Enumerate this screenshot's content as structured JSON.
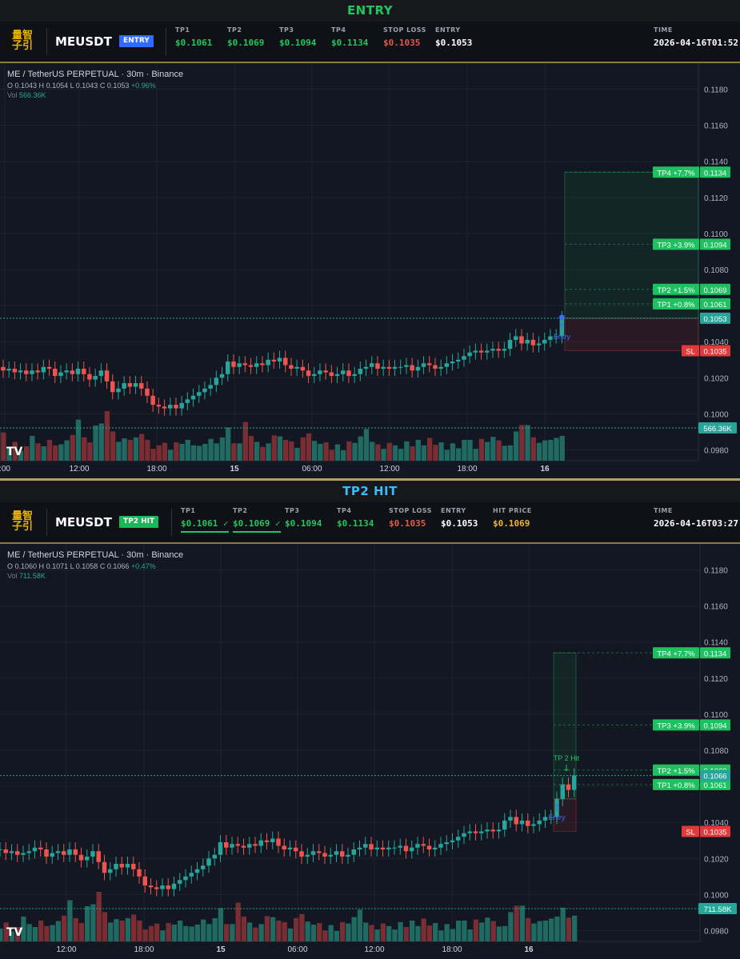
{
  "colors": {
    "up": "#26a69a",
    "down": "#ef5350",
    "tp": "#1ec15f",
    "sl": "#e03a3a",
    "entry_badge": "#2f6bff",
    "tp2_badge": "#16b85a",
    "tp2_banner": "#38bdf8",
    "entry_banner": "#22c55e",
    "hit": "#f0b429"
  },
  "logo_text_1": "量智",
  "logo_text_2": "子引",
  "panels": [
    {
      "banner": "ENTRY",
      "symbol": "MEUSDT",
      "status": "ENTRY",
      "fields": [
        {
          "label": "TP1",
          "value": "$0.1061"
        },
        {
          "label": "TP2",
          "value": "$0.1069"
        },
        {
          "label": "TP3",
          "value": "$0.1094"
        },
        {
          "label": "TP4",
          "value": "$0.1134"
        },
        {
          "label": "STOP LOSS",
          "value": "$0.1035"
        },
        {
          "label": "ENTRY",
          "value": "$0.1053"
        }
      ],
      "time_label": "TIME",
      "time_value": "2026-04-16T01:52",
      "overlay": {
        "title": "ME / TetherUS PERPETUAL · 30m · Binance",
        "O": "0.1043",
        "H": "0.1054",
        "L": "0.1043",
        "C": "0.1053",
        "chg": "+0.96%",
        "vol": "566.36K"
      }
    },
    {
      "banner": "TP2 HIT",
      "symbol": "MEUSDT",
      "status": "TP2 HIT",
      "fields": [
        {
          "label": "TP1",
          "value": "$0.1061 ✓"
        },
        {
          "label": "TP2",
          "value": "$0.1069 ✓"
        },
        {
          "label": "TP3",
          "value": "$0.1094"
        },
        {
          "label": "TP4",
          "value": "$0.1134"
        },
        {
          "label": "STOP LOSS",
          "value": "$0.1035"
        },
        {
          "label": "ENTRY",
          "value": "$0.1053"
        },
        {
          "label": "HIT PRICE",
          "value": "$0.1069"
        }
      ],
      "time_label": "TIME",
      "time_value": "2026-04-16T03:27",
      "overlay": {
        "title": "ME / TetherUS PERPETUAL · 30m · Binance",
        "O": "0.1060",
        "H": "0.1071",
        "L": "0.1058",
        "C": "0.1066",
        "chg": "+0.47%",
        "vol": "711.58K"
      }
    }
  ],
  "chart_data": [
    {
      "type": "candlestick",
      "ylim": [
        0.097,
        0.119
      ],
      "y_ticks": [
        "0.1180",
        "0.1160",
        "0.1140",
        "0.1120",
        "0.1100",
        "0.1080",
        "0.1060",
        "0.1040",
        "0.1020",
        "0.1000",
        "0.0980"
      ],
      "x_ticks": [
        ":00",
        "12:00",
        "18:00",
        "15",
        "06:00",
        "12:00",
        "18:00",
        "16"
      ],
      "levels": [
        {
          "label": "TP4 +7.7%",
          "price": "0.1134"
        },
        {
          "label": "TP3 +3.9%",
          "price": "0.1094"
        },
        {
          "label": "TP2 +1.5%",
          "price": "0.1069"
        },
        {
          "label": "TP1 +0.8%",
          "price": "0.1061"
        },
        {
          "label": "SL",
          "price": "0.1035"
        }
      ],
      "last_price": "0.1053",
      "volume_label": "566.36K",
      "marker": "Entry",
      "closes": [
        0.1026,
        0.1024,
        0.1025,
        0.1023,
        0.1024,
        0.1022,
        0.1024,
        0.1023,
        0.1026,
        0.1025,
        0.1021,
        0.1023,
        0.1024,
        0.1022,
        0.1025,
        0.1022,
        0.1019,
        0.1021,
        0.1024,
        0.1018,
        0.1012,
        0.1014,
        0.1017,
        0.1015,
        0.1017,
        0.1014,
        0.101,
        0.1005,
        0.1004,
        0.1003,
        0.1005,
        0.1003,
        0.1006,
        0.1008,
        0.101,
        0.1012,
        0.1014,
        0.1016,
        0.102,
        0.1022,
        0.1029,
        0.1026,
        0.1028,
        0.1027,
        0.1026,
        0.1028,
        0.1027,
        0.103,
        0.1029,
        0.1031,
        0.1027,
        0.1025,
        0.1026,
        0.1024,
        0.1021,
        0.1022,
        0.1024,
        0.1023,
        0.1021,
        0.1022,
        0.1024,
        0.1021,
        0.1022,
        0.1025,
        0.1026,
        0.1028,
        0.1025,
        0.1026,
        0.1025,
        0.1026,
        0.1026,
        0.1027,
        0.1024,
        0.1026,
        0.1028,
        0.1027,
        0.1025,
        0.1026,
        0.1028,
        0.1029,
        0.103,
        0.1032,
        0.1034,
        0.1035,
        0.1034,
        0.1035,
        0.1036,
        0.1035,
        0.1036,
        0.1041,
        0.1043,
        0.1039,
        0.1041,
        0.1038,
        0.1039,
        0.1041,
        0.1043,
        0.1043,
        0.1053
      ],
      "volumes": [
        62,
        57,
        26,
        38,
        20,
        29,
        50,
        35,
        29,
        42,
        31,
        33,
        41,
        52,
        83,
        47,
        37,
        71,
        75,
        100,
        59,
        38,
        45,
        42,
        47,
        54,
        42,
        24,
        31,
        36,
        22,
        37,
        34,
        42,
        31,
        30,
        34,
        44,
        35,
        47,
        67,
        35,
        35,
        78,
        50,
        38,
        28,
        35,
        51,
        49,
        42,
        39,
        26,
        47,
        55,
        40,
        34,
        37,
        22,
        33,
        21,
        39,
        36,
        49,
        64,
        38,
        33,
        24,
        36,
        31,
        24,
        39,
        29,
        42,
        31,
        46,
        32,
        37,
        22,
        35,
        25,
        42,
        42,
        24,
        44,
        38,
        48,
        41,
        30,
        31,
        59,
        72,
        72,
        47,
        36,
        41,
        42,
        46,
        50
      ]
    },
    {
      "type": "candlestick",
      "ylim": [
        0.097,
        0.119
      ],
      "y_ticks": [
        "0.1180",
        "0.1160",
        "0.1140",
        "0.1120",
        "0.1100",
        "0.1080",
        "0.1060",
        "0.1040",
        "0.1020",
        "0.1000",
        "0.0980"
      ],
      "x_ticks": [
        "12:00",
        "18:00",
        "15",
        "06:00",
        "12:00",
        "18:00",
        "16"
      ],
      "levels": [
        {
          "label": "TP4 +7.7%",
          "price": "0.1134"
        },
        {
          "label": "TP3 +3.9%",
          "price": "0.1094"
        },
        {
          "label": "TP2 +1.5%",
          "price": "0.1069"
        },
        {
          "label": "TP1 +0.8%",
          "price": "0.1061"
        },
        {
          "label": "SL",
          "price": "0.1035"
        }
      ],
      "last_price": "0.1066",
      "volume_label": "711.58K",
      "marker": "Entry",
      "hit_marker": "TP 2 Hit",
      "closes": [
        0.1025,
        0.1025,
        0.1023,
        0.1024,
        0.1022,
        0.1023,
        0.1024,
        0.1026,
        0.1025,
        0.1021,
        0.1023,
        0.1024,
        0.1022,
        0.1025,
        0.1022,
        0.1019,
        0.1021,
        0.1024,
        0.1018,
        0.1012,
        0.1014,
        0.1017,
        0.1015,
        0.1017,
        0.1014,
        0.101,
        0.1005,
        0.1004,
        0.1003,
        0.1005,
        0.1003,
        0.1006,
        0.1008,
        0.101,
        0.1012,
        0.1014,
        0.1016,
        0.102,
        0.1022,
        0.1029,
        0.1026,
        0.1028,
        0.1027,
        0.1026,
        0.1028,
        0.1027,
        0.103,
        0.1029,
        0.1031,
        0.1027,
        0.1025,
        0.1026,
        0.1024,
        0.1021,
        0.1022,
        0.1024,
        0.1023,
        0.1021,
        0.1022,
        0.1024,
        0.1021,
        0.1022,
        0.1025,
        0.1026,
        0.1028,
        0.1025,
        0.1026,
        0.1025,
        0.1026,
        0.1026,
        0.1027,
        0.1024,
        0.1026,
        0.1028,
        0.1027,
        0.1025,
        0.1026,
        0.1028,
        0.1029,
        0.103,
        0.1032,
        0.1034,
        0.1035,
        0.1034,
        0.1035,
        0.1036,
        0.1035,
        0.1036,
        0.1041,
        0.1043,
        0.1039,
        0.1041,
        0.1038,
        0.1039,
        0.1041,
        0.1043,
        0.1043,
        0.1053,
        0.1061,
        0.1058,
        0.1066
      ],
      "volumes": [
        62,
        26,
        38,
        20,
        29,
        50,
        35,
        29,
        42,
        31,
        33,
        41,
        52,
        83,
        47,
        37,
        71,
        75,
        100,
        59,
        38,
        45,
        42,
        47,
        54,
        42,
        24,
        31,
        36,
        22,
        37,
        34,
        42,
        31,
        30,
        34,
        44,
        35,
        47,
        67,
        35,
        35,
        78,
        50,
        38,
        28,
        35,
        51,
        49,
        42,
        39,
        26,
        47,
        55,
        40,
        34,
        37,
        22,
        33,
        21,
        39,
        36,
        49,
        64,
        38,
        33,
        24,
        36,
        31,
        24,
        39,
        29,
        42,
        31,
        46,
        32,
        37,
        22,
        35,
        25,
        42,
        42,
        24,
        44,
        38,
        48,
        41,
        30,
        31,
        59,
        72,
        72,
        47,
        36,
        41,
        42,
        46,
        50,
        68,
        48,
        52
      ]
    }
  ]
}
